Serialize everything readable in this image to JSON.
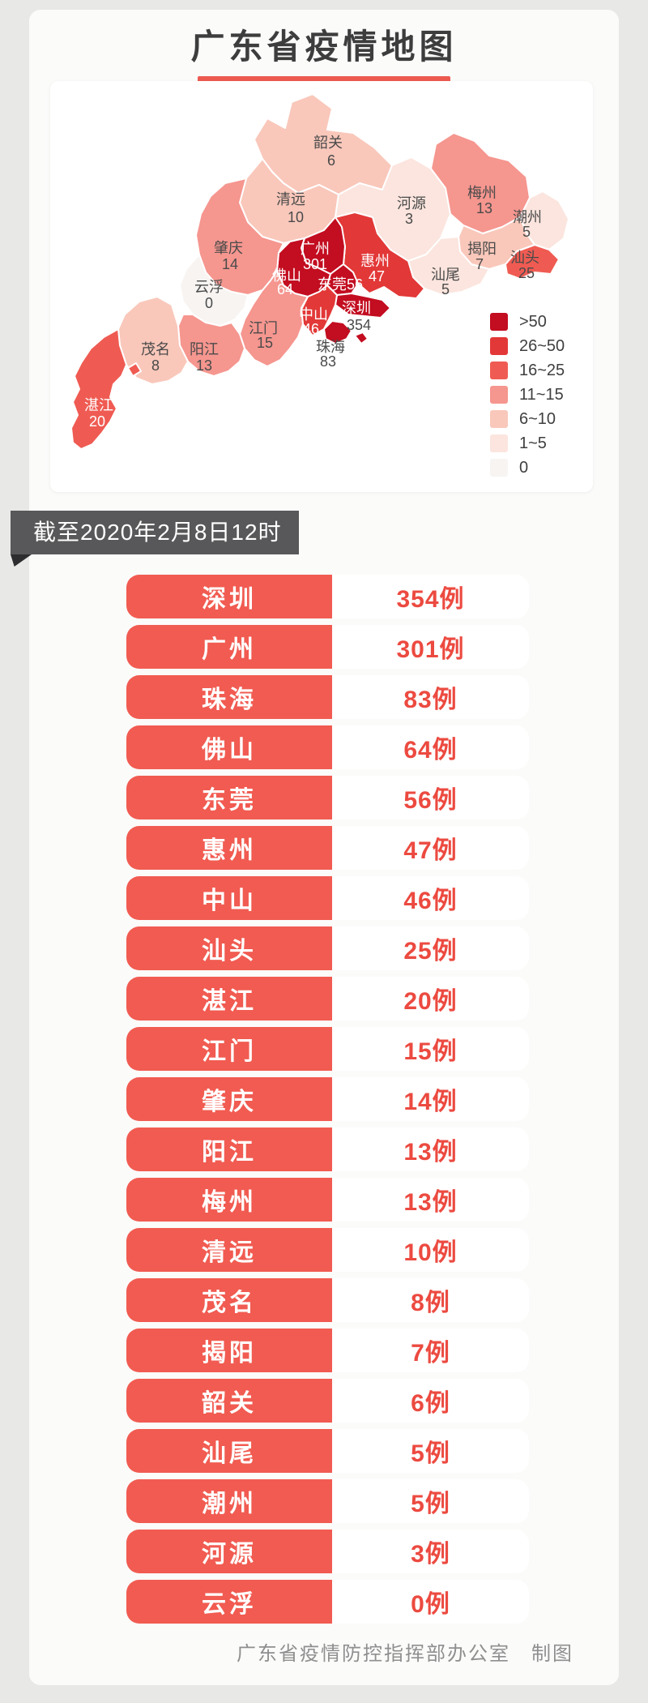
{
  "header": {
    "title": "广东省疫情地图",
    "underline_color": "#ed5a50"
  },
  "banner": {
    "text": "截至2020年2月8日12时",
    "background": "#58585a"
  },
  "map": {
    "legend": [
      {
        "label": ">50",
        "color": "#c30d20"
      },
      {
        "label": "26~50",
        "color": "#e23837"
      },
      {
        "label": "16~25",
        "color": "#ef5b52"
      },
      {
        "label": "11~15",
        "color": "#f5968f"
      },
      {
        "label": "6~10",
        "color": "#f9c8bb"
      },
      {
        "label": "1~5",
        "color": "#fbe5de"
      },
      {
        "label": "0",
        "color": "#f7f4f2"
      }
    ],
    "regions": [
      {
        "id": "shaoguan",
        "name": "韶关",
        "cases": 6,
        "bucket": "6~10",
        "name_color": "#4a4a4a",
        "value_color": "#4a4a4a"
      },
      {
        "id": "qingyuan",
        "name": "清远",
        "cases": 10,
        "bucket": "6~10",
        "name_color": "#4a4a4a",
        "value_color": "#4a4a4a"
      },
      {
        "id": "heyuan",
        "name": "河源",
        "cases": 3,
        "bucket": "1~5",
        "name_color": "#4a4a4a",
        "value_color": "#4a4a4a"
      },
      {
        "id": "meizhou",
        "name": "梅州",
        "cases": 13,
        "bucket": "11~15",
        "name_color": "#4a4a4a",
        "value_color": "#4a4a4a"
      },
      {
        "id": "chaozhou",
        "name": "潮州",
        "cases": 5,
        "bucket": "1~5",
        "name_color": "#4a4a4a",
        "value_color": "#4a4a4a"
      },
      {
        "id": "shantou",
        "name": "汕头",
        "cases": 25,
        "bucket": "16~25",
        "name_color": "#4a4a4a",
        "value_color": "#4a4a4a"
      },
      {
        "id": "jieyang",
        "name": "揭阳",
        "cases": 7,
        "bucket": "6~10",
        "name_color": "#4a4a4a",
        "value_color": "#4a4a4a"
      },
      {
        "id": "shanwei",
        "name": "汕尾",
        "cases": 5,
        "bucket": "1~5",
        "name_color": "#4a4a4a",
        "value_color": "#4a4a4a"
      },
      {
        "id": "huizhou",
        "name": "惠州",
        "cases": 47,
        "bucket": "26~50",
        "name_color": "#ffffff",
        "value_color": "#ffffff"
      },
      {
        "id": "guangzhou",
        "name": "广州",
        "cases": 301,
        "bucket": ">50",
        "name_color": "#ffffff",
        "value_color": "#ffffff"
      },
      {
        "id": "dongguan",
        "name": "东莞",
        "cases": 56,
        "bucket": ">50",
        "name_color": "#ffffff",
        "value_color": "#ffffff"
      },
      {
        "id": "shenzhen",
        "name": "深圳",
        "cases": 354,
        "bucket": ">50",
        "name_color": "#ffffff",
        "value_color": "#4a4a4a"
      },
      {
        "id": "foshan",
        "name": "佛山",
        "cases": 64,
        "bucket": ">50",
        "name_color": "#ffffff",
        "value_color": "#ffffff"
      },
      {
        "id": "zhongshan",
        "name": "中山",
        "cases": 46,
        "bucket": "26~50",
        "name_color": "#ffffff",
        "value_color": "#ffffff"
      },
      {
        "id": "zhuhai",
        "name": "珠海",
        "cases": 83,
        "bucket": ">50",
        "name_color": "#4a4a4a",
        "value_color": "#4a4a4a"
      },
      {
        "id": "jiangmen",
        "name": "江门",
        "cases": 15,
        "bucket": "11~15",
        "name_color": "#4a4a4a",
        "value_color": "#4a4a4a"
      },
      {
        "id": "zhaoqing",
        "name": "肇庆",
        "cases": 14,
        "bucket": "11~15",
        "name_color": "#4a4a4a",
        "value_color": "#4a4a4a"
      },
      {
        "id": "yunfu",
        "name": "云浮",
        "cases": 0,
        "bucket": "0",
        "name_color": "#4a4a4a",
        "value_color": "#4a4a4a"
      },
      {
        "id": "yangjiang",
        "name": "阳江",
        "cases": 13,
        "bucket": "11~15",
        "name_color": "#4a4a4a",
        "value_color": "#4a4a4a"
      },
      {
        "id": "maoming",
        "name": "茂名",
        "cases": 8,
        "bucket": "6~10",
        "name_color": "#4a4a4a",
        "value_color": "#4a4a4a"
      },
      {
        "id": "zhanjiang",
        "name": "湛江",
        "cases": 20,
        "bucket": "16~25",
        "name_color": "#ffffff",
        "value_color": "#ffffff"
      }
    ]
  },
  "table": {
    "pill_color": "#f15b51",
    "value_color": "#ec4a40",
    "rows": [
      {
        "city": "深圳",
        "value": "354例"
      },
      {
        "city": "广州",
        "value": "301例"
      },
      {
        "city": "珠海",
        "value": "83例"
      },
      {
        "city": "佛山",
        "value": "64例"
      },
      {
        "city": "东莞",
        "value": "56例"
      },
      {
        "city": "惠州",
        "value": "47例"
      },
      {
        "city": "中山",
        "value": "46例"
      },
      {
        "city": "汕头",
        "value": "25例"
      },
      {
        "city": "湛江",
        "value": "20例"
      },
      {
        "city": "江门",
        "value": "15例"
      },
      {
        "city": "肇庆",
        "value": "14例"
      },
      {
        "city": "阳江",
        "value": "13例"
      },
      {
        "city": "梅州",
        "value": "13例"
      },
      {
        "city": "清远",
        "value": "10例"
      },
      {
        "city": "茂名",
        "value": "8例"
      },
      {
        "city": "揭阳",
        "value": "7例"
      },
      {
        "city": "韶关",
        "value": "6例"
      },
      {
        "city": "汕尾",
        "value": "5例"
      },
      {
        "city": "潮州",
        "value": "5例"
      },
      {
        "city": "河源",
        "value": "3例"
      },
      {
        "city": "云浮",
        "value": "0例"
      }
    ]
  },
  "footer": {
    "text": "广东省疫情防控指挥部办公室　制图"
  },
  "chart_data": {
    "type": "table",
    "title": "广东省疫情地图",
    "as_of": "截至2020年2月8日12时",
    "legend_buckets": [
      ">50",
      "26~50",
      "16~25",
      "11~15",
      "6~10",
      "1~5",
      "0"
    ],
    "rows": [
      [
        "深圳",
        354
      ],
      [
        "广州",
        301
      ],
      [
        "珠海",
        83
      ],
      [
        "佛山",
        64
      ],
      [
        "东莞",
        56
      ],
      [
        "惠州",
        47
      ],
      [
        "中山",
        46
      ],
      [
        "汕头",
        25
      ],
      [
        "湛江",
        20
      ],
      [
        "江门",
        15
      ],
      [
        "肇庆",
        14
      ],
      [
        "阳江",
        13
      ],
      [
        "梅州",
        13
      ],
      [
        "清远",
        10
      ],
      [
        "茂名",
        8
      ],
      [
        "揭阳",
        7
      ],
      [
        "韶关",
        6
      ],
      [
        "汕尾",
        5
      ],
      [
        "潮州",
        5
      ],
      [
        "河源",
        3
      ],
      [
        "云浮",
        0
      ]
    ]
  }
}
